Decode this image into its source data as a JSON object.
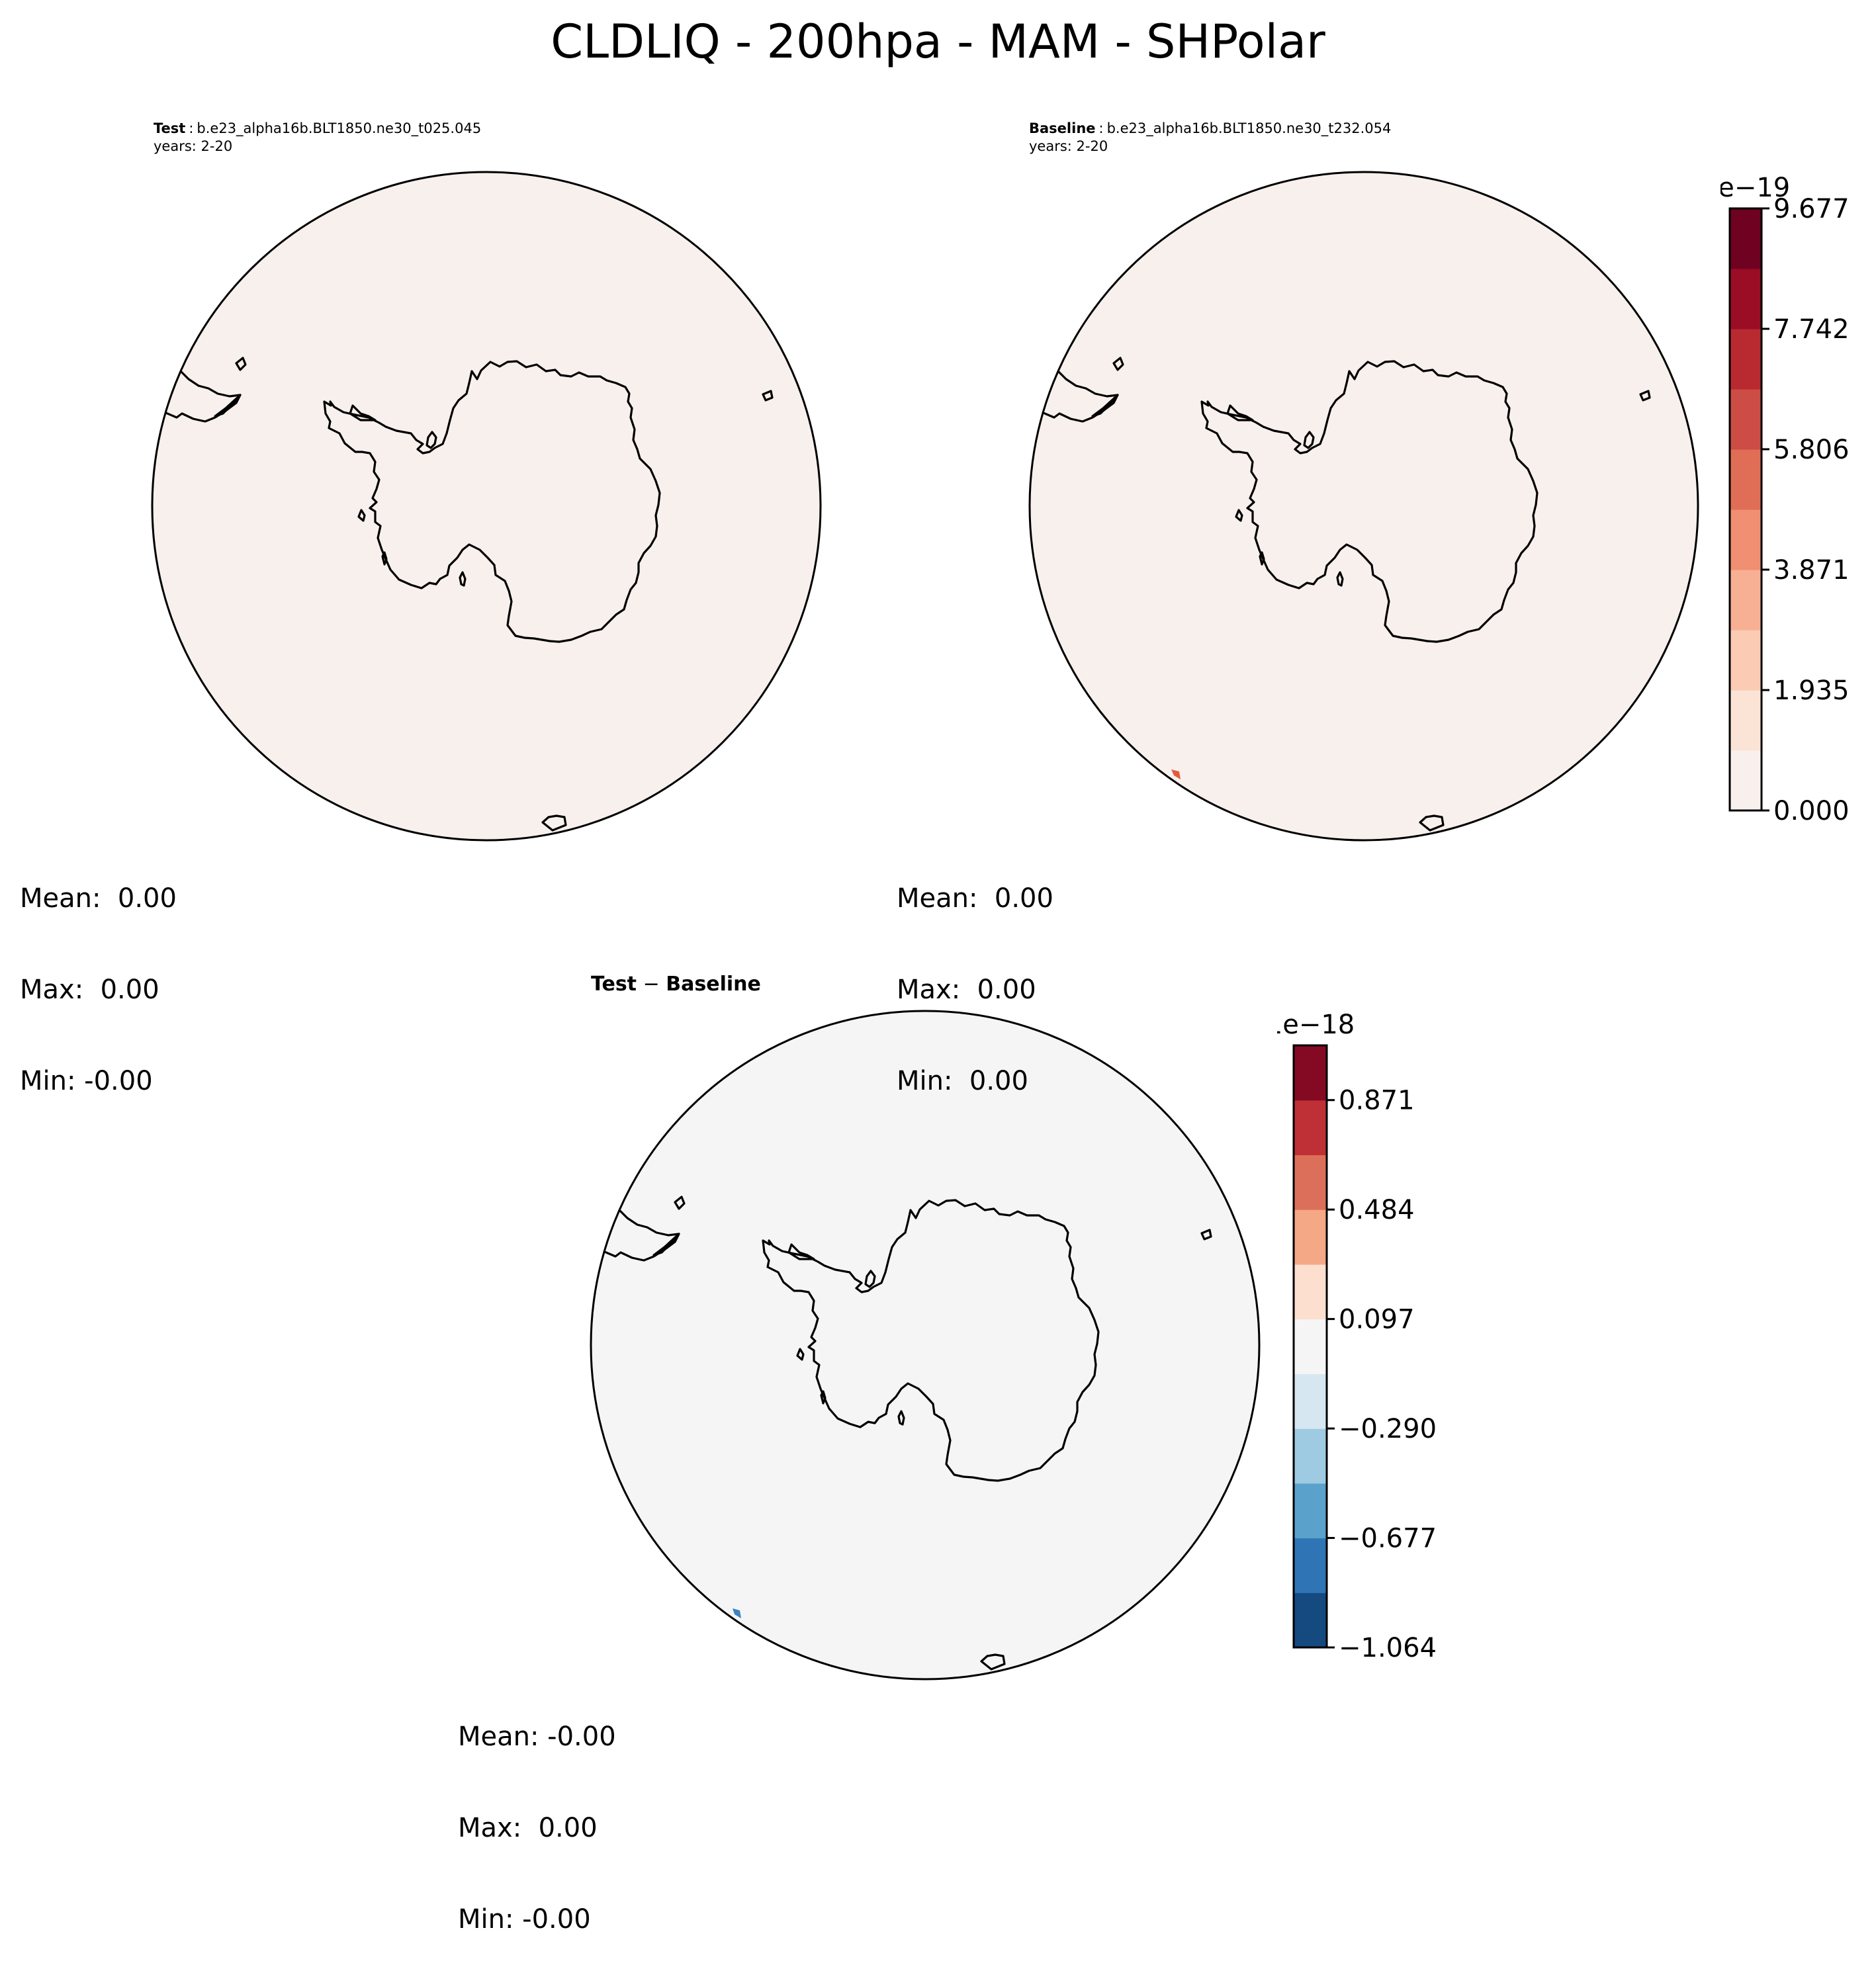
{
  "figure": {
    "title": "CLDLIQ - 200hpa - MAM - SHPolar"
  },
  "panels": {
    "test": {
      "label": "Test",
      "case": "b.e23_alpha16b.BLT1850.ne30_t025.045",
      "years": "years: 2-20",
      "mean": "Mean:  0.00",
      "max": "Max:  0.00",
      "min": "Min: -0.00",
      "fill_color": "#f7f0ec"
    },
    "baseline": {
      "label": "Baseline",
      "case": "b.e23_alpha16b.BLT1850.ne30_t232.054",
      "years": "years: 2-20",
      "mean": "Mean:  0.00",
      "max": "Max:  0.00",
      "min": "Min:  0.00",
      "fill_color": "#f7f0ec"
    },
    "diff": {
      "title_left": "Test",
      "title_op": " − ",
      "title_right": "Baseline",
      "mean": "Mean: -0.00",
      "max": "Max:  0.00",
      "min": "Min: -0.00",
      "fill_color": "#f5f5f5"
    }
  },
  "colorbars": {
    "top": {
      "exponent": "1e−19",
      "tick_labels": [
        "0.000",
        "1.935",
        "3.871",
        "5.806",
        "7.742",
        "9.677"
      ],
      "colors": [
        "#f7f0ec",
        "#fbe4d6",
        "#fbcbb4",
        "#f7b093",
        "#f08f71",
        "#e06d55",
        "#cc4d45",
        "#b82a30",
        "#9b0c25",
        "#6f0220"
      ]
    },
    "bottom": {
      "exponent": "1e−18",
      "tick_labels": [
        "−1.064",
        "−0.677",
        "−0.290",
        "0.097",
        "0.484",
        "0.871"
      ],
      "colors": [
        "#154a80",
        "#2f74b4",
        "#5aa1cc",
        "#9fcbe2",
        "#d6e7f1",
        "#f5f5f5",
        "#fcdfcf",
        "#f5a886",
        "#dc6f59",
        "#be3035",
        "#840923"
      ]
    }
  }
}
